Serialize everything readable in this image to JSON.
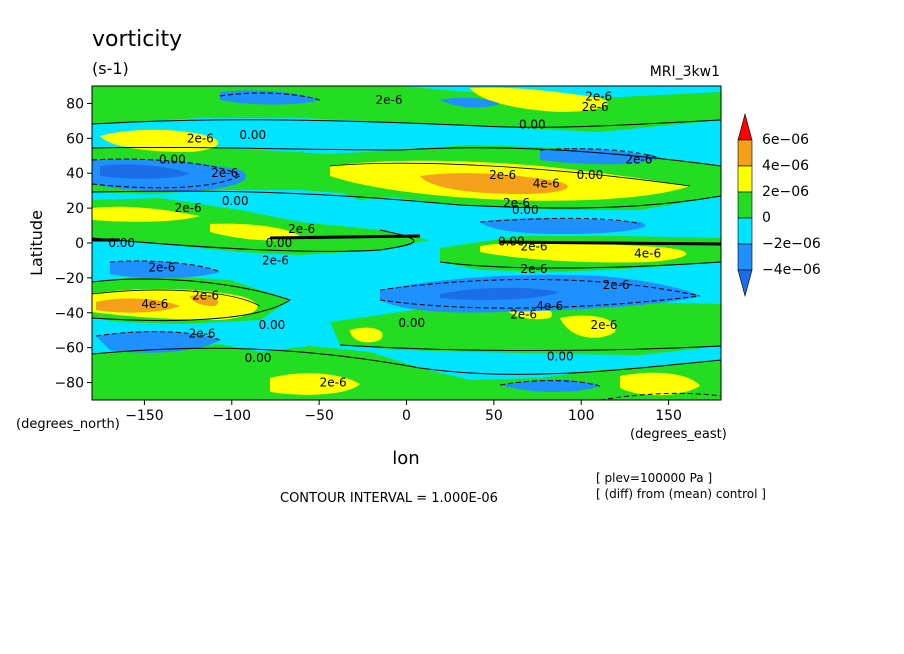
{
  "chart_data": {
    "type": "heatmap",
    "title": "vorticity",
    "units": "(s-1)",
    "model": "MRI_3kw1",
    "xlabel": "lon",
    "ylabel": "Latitude",
    "x_units": "(degrees_east)",
    "y_units": "(degrees_north)",
    "xlim": [
      -180,
      180
    ],
    "ylim": [
      -90,
      90
    ],
    "x_ticks": [
      -150,
      -100,
      -50,
      0,
      50,
      100,
      150
    ],
    "y_ticks": [
      80,
      60,
      40,
      20,
      0,
      -20,
      -40,
      -60,
      -80
    ],
    "x_tick_labels": [
      "−150",
      "−100",
      "−50",
      "0",
      "50",
      "100",
      "150"
    ],
    "y_tick_labels": [
      "80",
      "60",
      "40",
      "20",
      "0",
      "−20",
      "−40",
      "−60",
      "−80"
    ],
    "colorbar": {
      "labels": [
        "6e−06",
        "4e−06",
        "2e−06",
        "0",
        "−2e−06",
        "−4e−06"
      ],
      "colors": [
        "#ff0000",
        "#f5a01a",
        "#ffff00",
        "#22dd22",
        "#00e5ff",
        "#1e90ff",
        "#1c6ee8"
      ]
    },
    "contour_labels": [
      {
        "text": "2e-6",
        "lon": -10,
        "lat": 82
      },
      {
        "text": "2e-6",
        "lon": 110,
        "lat": 84
      },
      {
        "text": "2e-6",
        "lon": 108,
        "lat": 78
      },
      {
        "text": "0.00",
        "lon": 72,
        "lat": 68
      },
      {
        "text": "2e-6",
        "lon": -118,
        "lat": 60
      },
      {
        "text": "0.00",
        "lon": -88,
        "lat": 62
      },
      {
        "text": "0.00",
        "lon": -134,
        "lat": 48
      },
      {
        "text": "2e-6",
        "lon": 133,
        "lat": 48
      },
      {
        "text": "2e-6",
        "lon": -104,
        "lat": 40
      },
      {
        "text": "2e-6",
        "lon": 55,
        "lat": 39
      },
      {
        "text": "4e-6",
        "lon": 80,
        "lat": 34
      },
      {
        "text": "0.00",
        "lon": 105,
        "lat": 39
      },
      {
        "text": "2e-6",
        "lon": -125,
        "lat": 20
      },
      {
        "text": "0.00",
        "lon": -98,
        "lat": 24
      },
      {
        "text": "2e-6",
        "lon": 63,
        "lat": 23
      },
      {
        "text": "0.00",
        "lon": 68,
        "lat": 19
      },
      {
        "text": "2e-6",
        "lon": -60,
        "lat": 8
      },
      {
        "text": "0.00",
        "lon": -163,
        "lat": 0
      },
      {
        "text": "0.00",
        "lon": -73,
        "lat": 0
      },
      {
        "text": "0.00",
        "lon": 60,
        "lat": 1
      },
      {
        "text": "2e-6",
        "lon": 73,
        "lat": -2
      },
      {
        "text": "4e-6",
        "lon": 138,
        "lat": -6
      },
      {
        "text": "2e-6",
        "lon": -140,
        "lat": -14
      },
      {
        "text": "2e-6",
        "lon": -75,
        "lat": -10
      },
      {
        "text": "2e-6",
        "lon": 73,
        "lat": -15
      },
      {
        "text": "2e-6",
        "lon": 120,
        "lat": -24
      },
      {
        "text": "2e-6",
        "lon": -115,
        "lat": -30
      },
      {
        "text": "4e-6",
        "lon": -144,
        "lat": -35
      },
      {
        "text": "4e-6",
        "lon": 82,
        "lat": -36
      },
      {
        "text": "2e-6",
        "lon": 67,
        "lat": -41
      },
      {
        "text": "0.00",
        "lon": -77,
        "lat": -47
      },
      {
        "text": "0.00",
        "lon": 3,
        "lat": -46
      },
      {
        "text": "2e-6",
        "lon": 113,
        "lat": -47
      },
      {
        "text": "2e-6",
        "lon": -117,
        "lat": -52
      },
      {
        "text": "0.00",
        "lon": 88,
        "lat": -65
      },
      {
        "text": "0.00",
        "lon": -85,
        "lat": -66
      },
      {
        "text": "2e-6",
        "lon": -42,
        "lat": -80
      }
    ],
    "contour_interval_label": "CONTOUR INTERVAL = 1.000E-06",
    "notes": [
      "[ plev=100000 Pa ]",
      "[ (diff) from (mean) control ]"
    ],
    "grid": false,
    "legend_position": "right"
  }
}
